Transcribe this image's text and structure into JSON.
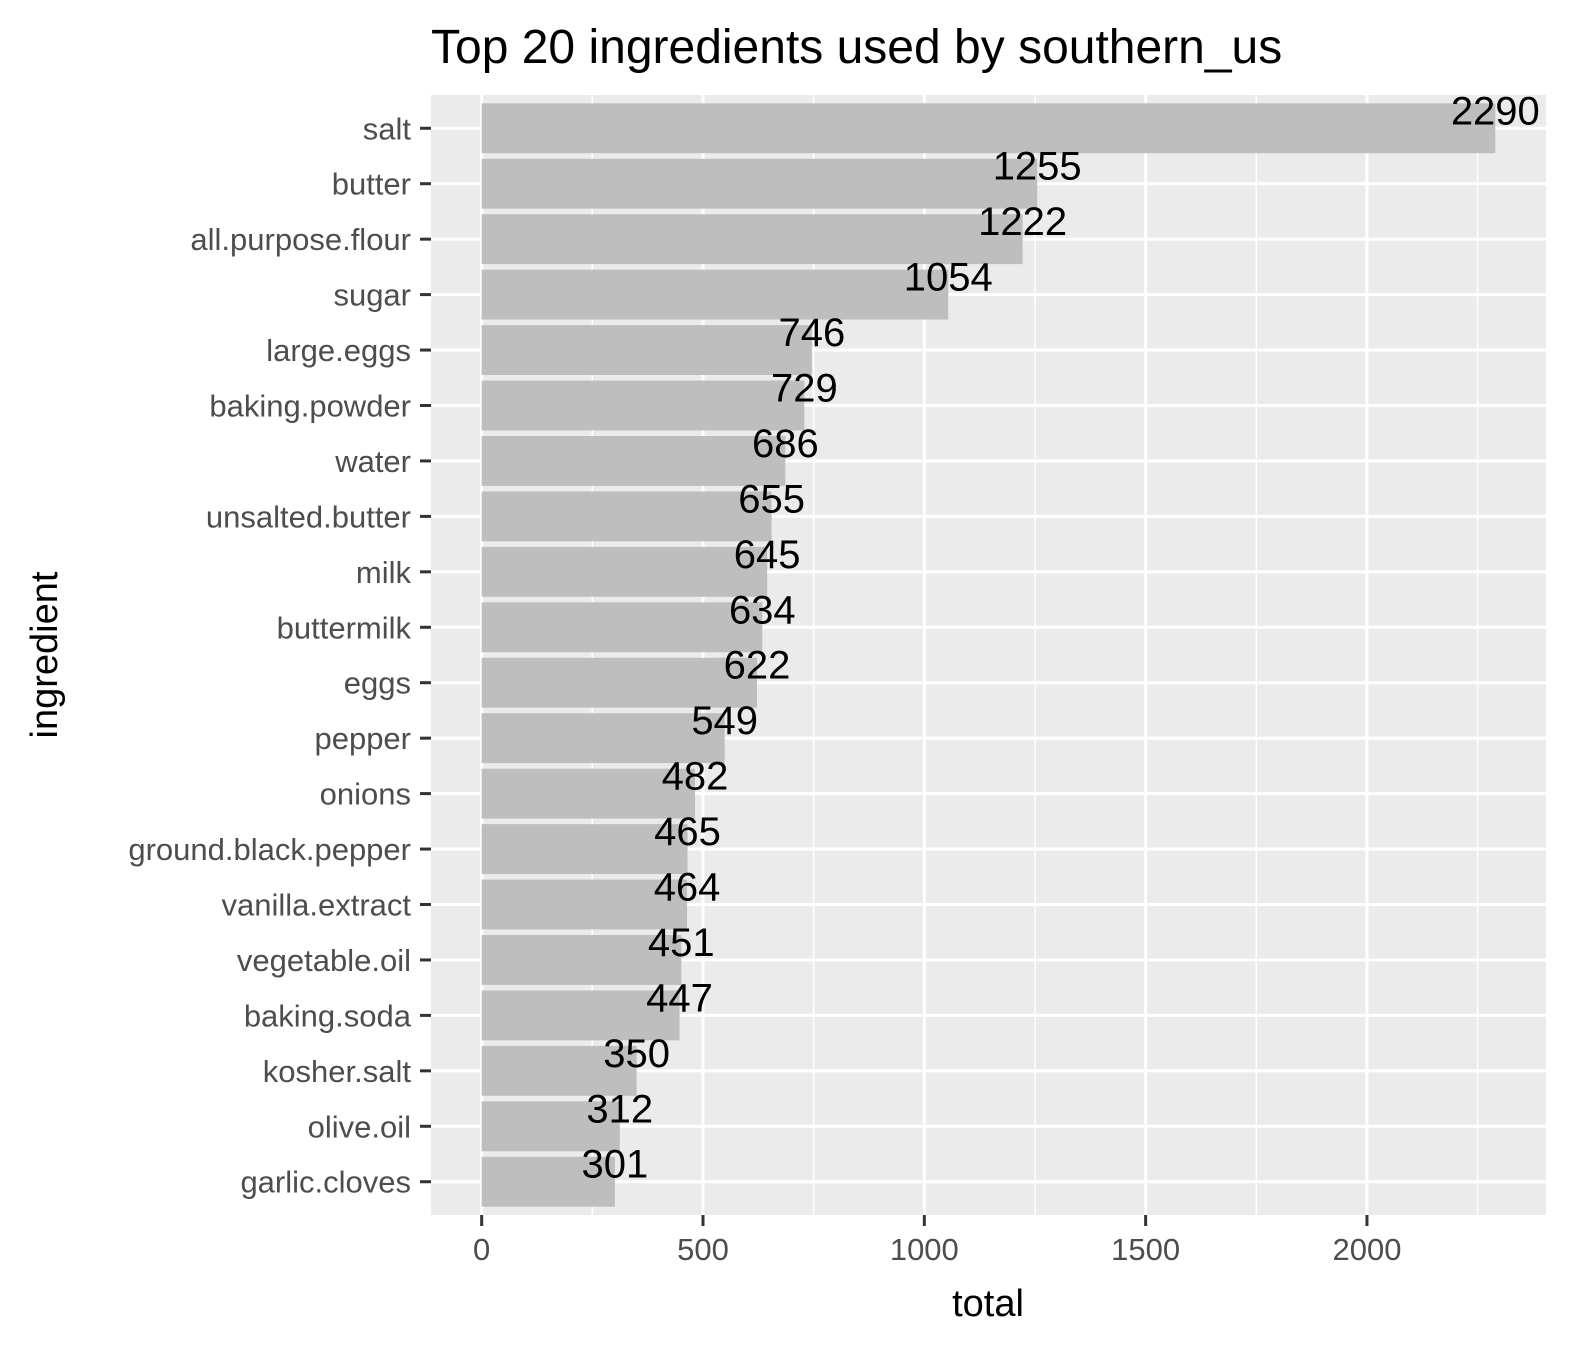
{
  "chart_data": {
    "type": "bar",
    "orientation": "horizontal",
    "title": "Top 20 ingredients used by southern_us",
    "xlabel": "total",
    "ylabel": "ingredient",
    "categories": [
      "salt",
      "butter",
      "all.purpose.flour",
      "sugar",
      "large.eggs",
      "baking.powder",
      "water",
      "unsalted.butter",
      "milk",
      "buttermilk",
      "eggs",
      "pepper",
      "onions",
      "ground.black.pepper",
      "vanilla.extract",
      "vegetable.oil",
      "baking.soda",
      "kosher.salt",
      "olive.oil",
      "garlic.cloves"
    ],
    "values": [
      2290,
      1255,
      1222,
      1054,
      746,
      729,
      686,
      655,
      645,
      634,
      622,
      549,
      482,
      465,
      464,
      451,
      447,
      350,
      312,
      301
    ],
    "xlim": [
      -114.5,
      2404.5
    ],
    "xticks": [
      "0",
      "500",
      "1000",
      "1500",
      "2000"
    ],
    "grid": true,
    "legend": "none",
    "colors": {
      "bar": "#bebebe",
      "panel": "#ebebeb",
      "grid": "#ffffff",
      "text": "#000000",
      "tick_text": "#4d4d4d"
    }
  }
}
